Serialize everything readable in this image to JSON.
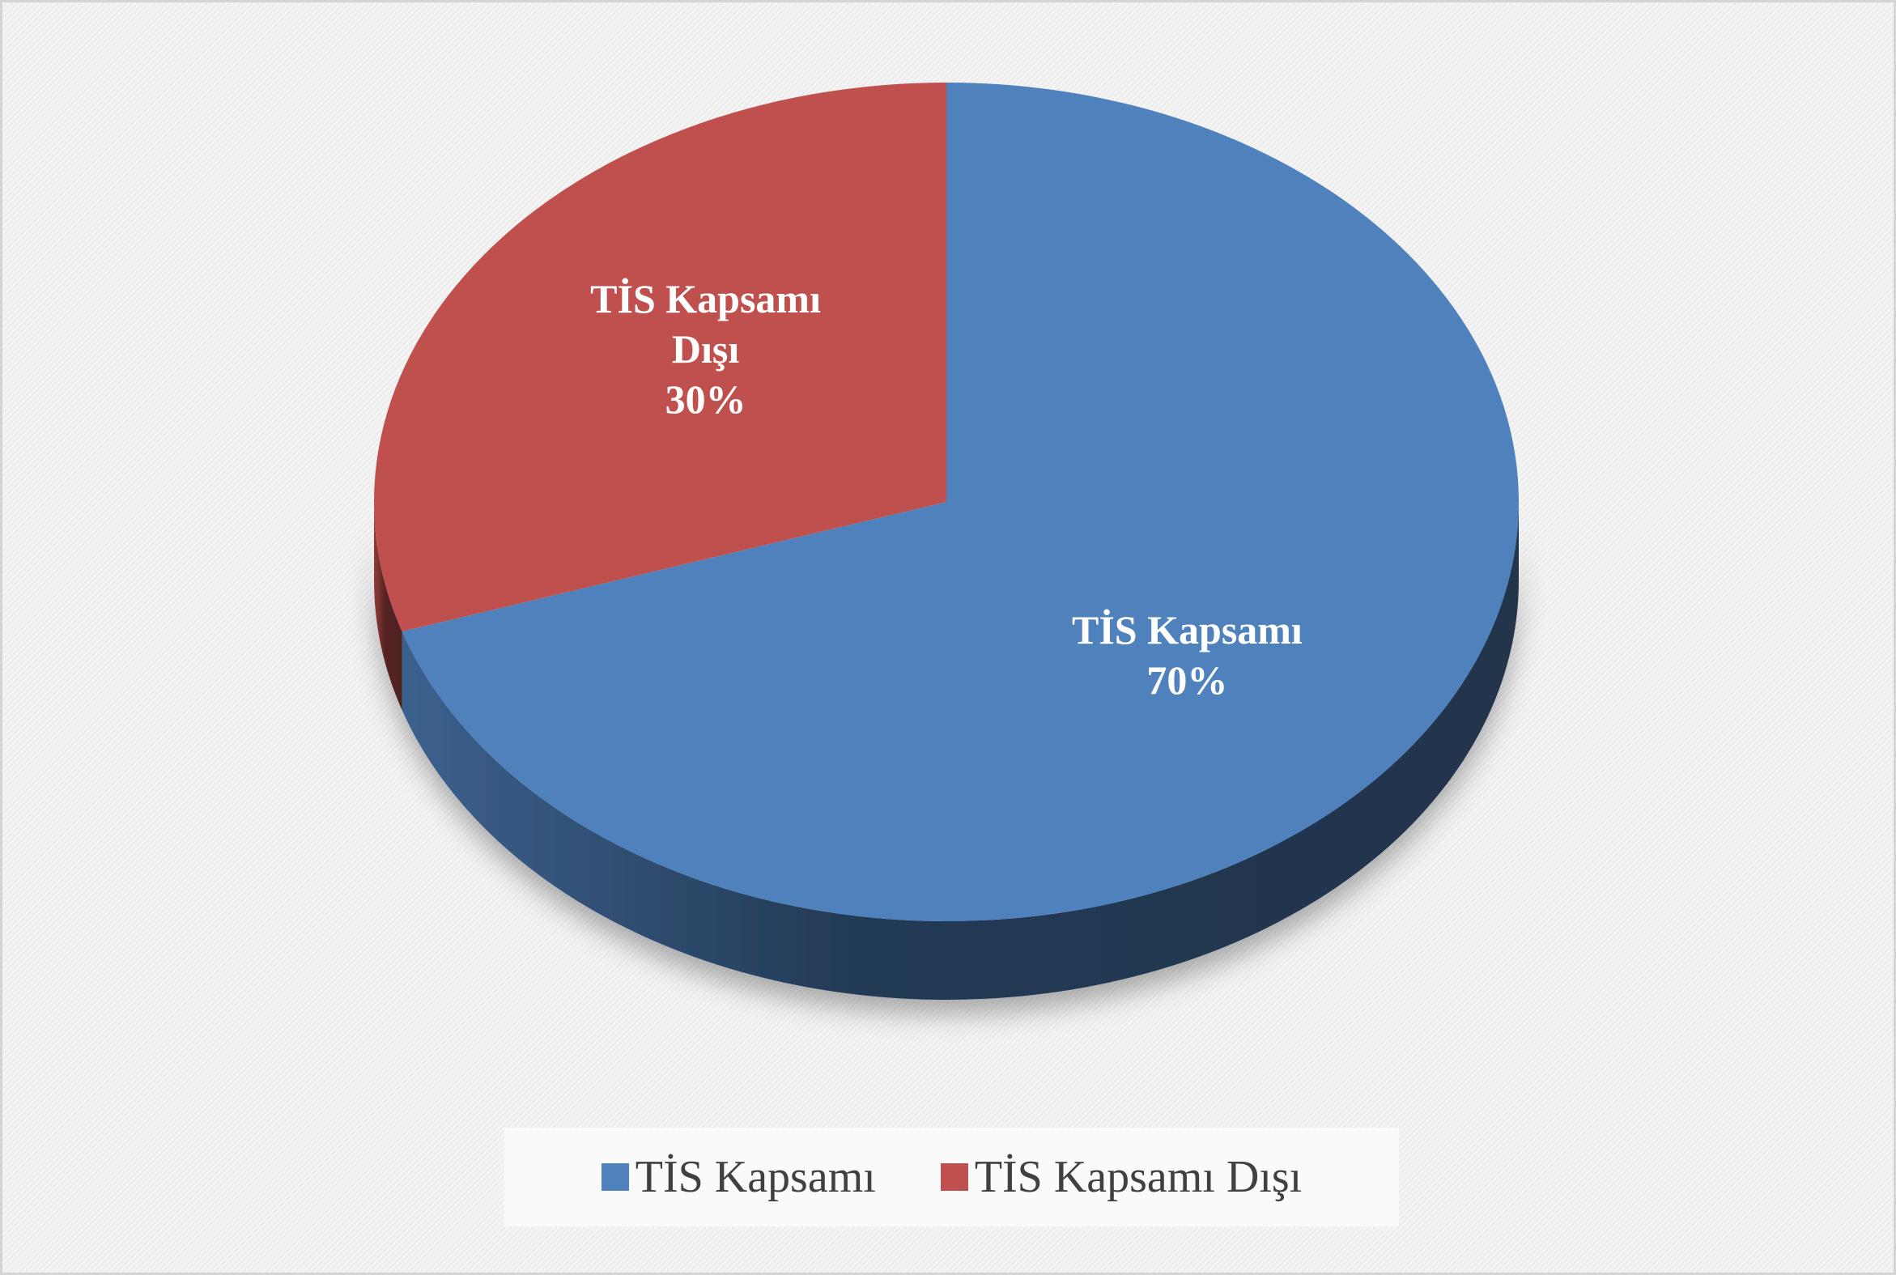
{
  "chart_data": {
    "type": "pie",
    "categories": [
      "TİS Kapsamı",
      "TİS Kapsamı Dışı"
    ],
    "values": [
      70,
      30
    ],
    "value_labels": [
      "70%",
      "30%"
    ],
    "colors": [
      "#4f81bd",
      "#c0504d"
    ],
    "legend": "bottom"
  }
}
